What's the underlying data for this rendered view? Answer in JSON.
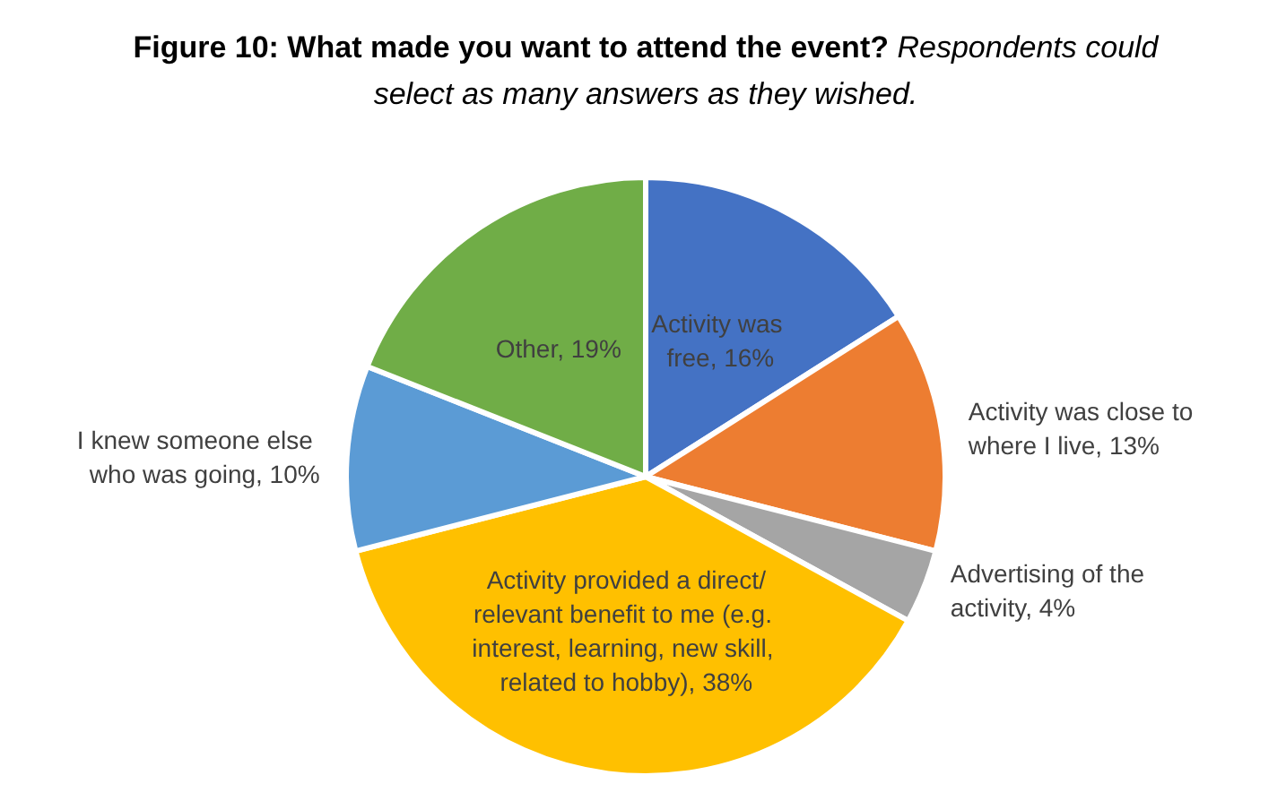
{
  "chart_data": {
    "type": "pie",
    "title": "Figure 10: What made you want to attend the event?",
    "subtitle": "Respondents could select as many answers as they wished.",
    "categories": [
      "Activity was free",
      "Activity was close to where I live",
      "Advertising of the activity",
      "Activity provided a direct/relevant benefit to me (e.g. interest, learning, new skill, related to hobby)",
      "I knew someone else who was going",
      "Other"
    ],
    "values": [
      16,
      13,
      4,
      38,
      10,
      19
    ],
    "value_labels": [
      "16%",
      "13%",
      "4%",
      "38%",
      "10%",
      "19%"
    ],
    "colors": [
      "#4472c4",
      "#ed7d31",
      "#a5a5a5",
      "#ffc000",
      "#5b9bd5",
      "#70ad47"
    ],
    "legend": false
  }
}
